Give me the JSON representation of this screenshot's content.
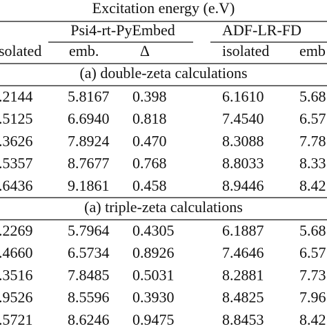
{
  "header": {
    "title": "Excitation energy (e.V)",
    "groups": [
      "Psi4-rt-PyEmbed",
      "ADF-LR-FD"
    ],
    "columns": [
      "solated",
      "emb.",
      "Δ",
      "isolated",
      "emb"
    ]
  },
  "sections": [
    {
      "title": "(a) double-zeta calculations",
      "rows": [
        [
          ".2144",
          "5.8167",
          "0.398",
          "6.1610",
          "5.68"
        ],
        [
          ".5125",
          "6.6940",
          "0.818",
          "7.4540",
          "6.57"
        ],
        [
          ".3626",
          "7.8924",
          "0.470",
          "8.3088",
          "7.78"
        ],
        [
          ".5357",
          "8.7677",
          "0.768",
          "8.8033",
          "8.33"
        ],
        [
          ".6436",
          "9.1861",
          "0.458",
          "8.9446",
          "8.42"
        ]
      ]
    },
    {
      "title": "(a) triple-zeta calculations",
      "rows": [
        [
          ".2269",
          "5.7964",
          "0.4305",
          "6.1887",
          "5.68"
        ],
        [
          ".4660",
          "6.5734",
          "0.8926",
          "7.4646",
          "6.57"
        ],
        [
          ".3516",
          "7.8485",
          "0.5031",
          "8.2881",
          "7.73"
        ],
        [
          ".9526",
          "8.5596",
          "0.3930",
          "8.4825",
          "7.96"
        ],
        [
          ".5721",
          "8.6246",
          "0.9475",
          "8.8453",
          "8.42"
        ]
      ]
    }
  ]
}
